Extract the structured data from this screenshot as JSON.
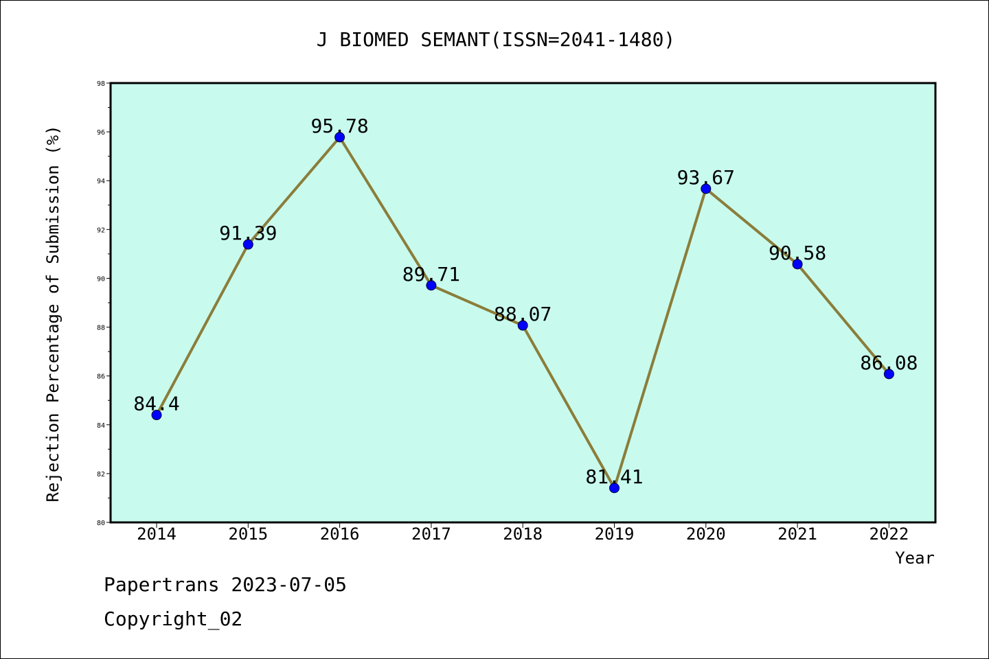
{
  "chart_data": {
    "type": "line",
    "title": "J BIOMED SEMANT(ISSN=2041-1480)",
    "xlabel": "Year",
    "ylabel": "Rejection Percentage of Submission (%)",
    "categories": [
      "2014",
      "2015",
      "2016",
      "2017",
      "2018",
      "2019",
      "2020",
      "2021",
      "2022"
    ],
    "series": [
      {
        "values": [
          84.4,
          91.39,
          95.78,
          89.71,
          88.07,
          81.41,
          93.67,
          90.58,
          86.08
        ],
        "labels": [
          "84.4",
          "91.39",
          "95.78",
          "89.71",
          "88.07",
          "81.41",
          "93.67",
          "90.58",
          "86.08"
        ],
        "line_color": "#8b7d3a",
        "marker_color": "#0000ff"
      }
    ],
    "ylim": [
      80,
      98
    ],
    "yticks": [
      80,
      82,
      84,
      86,
      88,
      90,
      92,
      94,
      96,
      98
    ],
    "plot_background": "#c8fbee",
    "grid": false,
    "legend": "none"
  },
  "footer": {
    "line1": "Papertrans 2023-07-05",
    "line2": "Copyright_02"
  }
}
